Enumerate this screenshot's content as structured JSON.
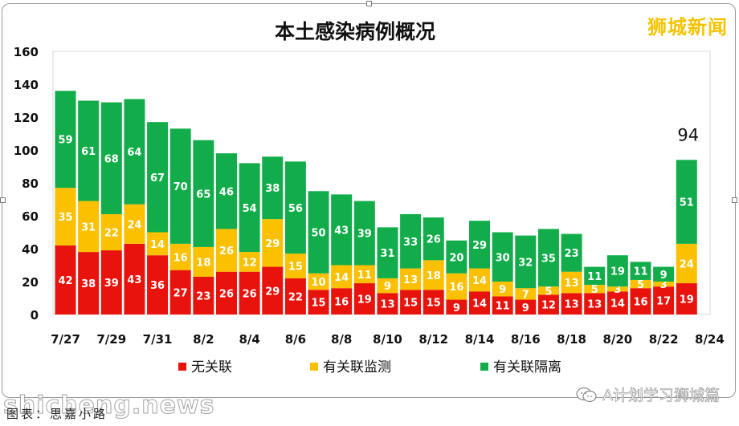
{
  "chart_data": {
    "type": "bar",
    "stacked": true,
    "title": "本土感染病例概况",
    "ylim": [
      0,
      160
    ],
    "yticks": [
      0,
      20,
      40,
      60,
      80,
      100,
      120,
      140,
      160
    ],
    "categories": [
      "7/27",
      "7/28",
      "7/29",
      "7/30",
      "7/31",
      "8/1",
      "8/2",
      "8/3",
      "8/4",
      "8/5",
      "8/6",
      "8/7",
      "8/8",
      "8/9",
      "8/10",
      "8/11",
      "8/12",
      "8/13",
      "8/14",
      "8/15",
      "8/16",
      "8/17",
      "8/18",
      "8/19",
      "8/20",
      "8/21",
      "8/22",
      "8/23"
    ],
    "xtick_labels": [
      "7/27",
      "7/29",
      "7/31",
      "8/2",
      "8/4",
      "8/6",
      "8/8",
      "8/10",
      "8/12",
      "8/14",
      "8/16",
      "8/18",
      "8/20",
      "8/22",
      "8/24"
    ],
    "series": [
      {
        "name": "无关联",
        "color": "#e8130c",
        "values": [
          42,
          38,
          39,
          43,
          36,
          27,
          23,
          26,
          26,
          29,
          22,
          15,
          16,
          19,
          13,
          15,
          15,
          9,
          14,
          11,
          9,
          12,
          13,
          13,
          14,
          16,
          17,
          19
        ]
      },
      {
        "name": "有关联监测",
        "color": "#fbc000",
        "values": [
          35,
          31,
          22,
          24,
          14,
          16,
          18,
          26,
          12,
          29,
          15,
          10,
          14,
          11,
          9,
          13,
          18,
          16,
          14,
          9,
          7,
          5,
          13,
          5,
          3,
          5,
          3,
          24
        ]
      },
      {
        "name": "有关联隔离",
        "color": "#12ad4a",
        "values": [
          59,
          61,
          68,
          64,
          67,
          70,
          65,
          46,
          54,
          38,
          56,
          50,
          43,
          39,
          31,
          33,
          26,
          20,
          29,
          30,
          32,
          35,
          23,
          11,
          19,
          11,
          9,
          51
        ]
      }
    ],
    "annotations": [
      {
        "category": "8/23",
        "text": "94"
      }
    ],
    "legend_position": "bottom",
    "grid": false
  },
  "watermark": "狮城新闻",
  "site_watermark": "shicheng.news",
  "caption": "图表：思嘉小路",
  "wechat": {
    "icon": "wechat-icon",
    "label": "A计划学习狮城篇"
  }
}
